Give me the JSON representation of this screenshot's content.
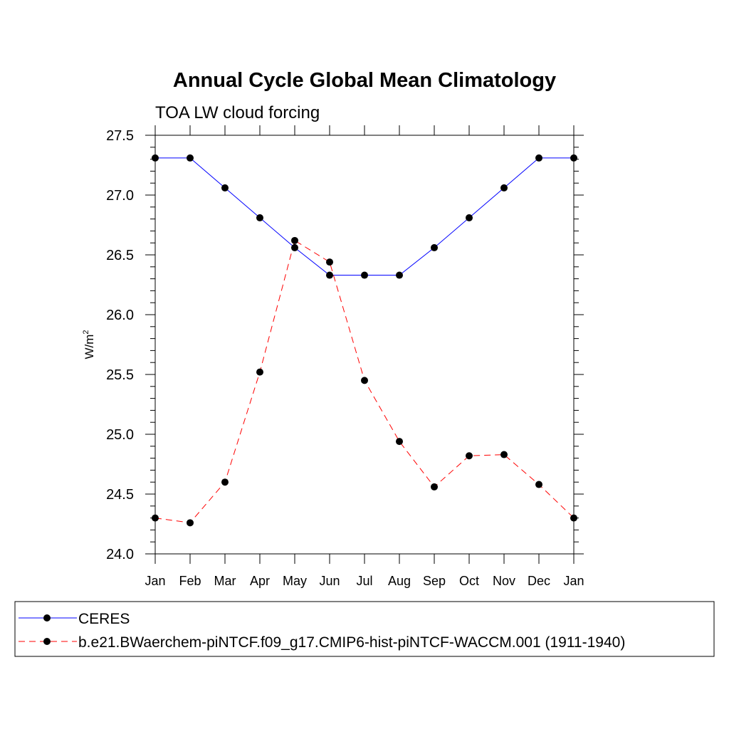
{
  "chart_data": {
    "type": "line",
    "title": "Annual Cycle Global Mean Climatology",
    "subtitle": "TOA LW cloud forcing",
    "ylabel_base": "W/m",
    "ylabel_sup": "2",
    "ylim": [
      24.0,
      27.5
    ],
    "yticks": [
      "24.0",
      "24.5",
      "25.0",
      "25.5",
      "26.0",
      "26.5",
      "27.0",
      "27.5"
    ],
    "categories": [
      "Jan",
      "Feb",
      "Mar",
      "Apr",
      "May",
      "Jun",
      "Jul",
      "Aug",
      "Sep",
      "Oct",
      "Nov",
      "Dec",
      "Jan"
    ],
    "series": [
      {
        "name": "CERES",
        "color": "#0000ff",
        "dash": "solid",
        "values": [
          27.31,
          27.31,
          27.06,
          26.81,
          26.56,
          26.33,
          26.33,
          26.33,
          26.56,
          26.81,
          27.06,
          27.31,
          27.31
        ]
      },
      {
        "name": "b.e21.BWaerchem-piNTCF.f09_g17.CMIP6-hist-piNTCF-WACCM.001 (1911-1940)",
        "color": "#ff0000",
        "dash": "dashed",
        "values": [
          24.3,
          24.26,
          24.6,
          25.52,
          26.62,
          26.44,
          25.45,
          24.94,
          24.56,
          24.82,
          24.83,
          24.58,
          24.3
        ]
      }
    ],
    "grid": false,
    "legend_position": "bottom"
  }
}
